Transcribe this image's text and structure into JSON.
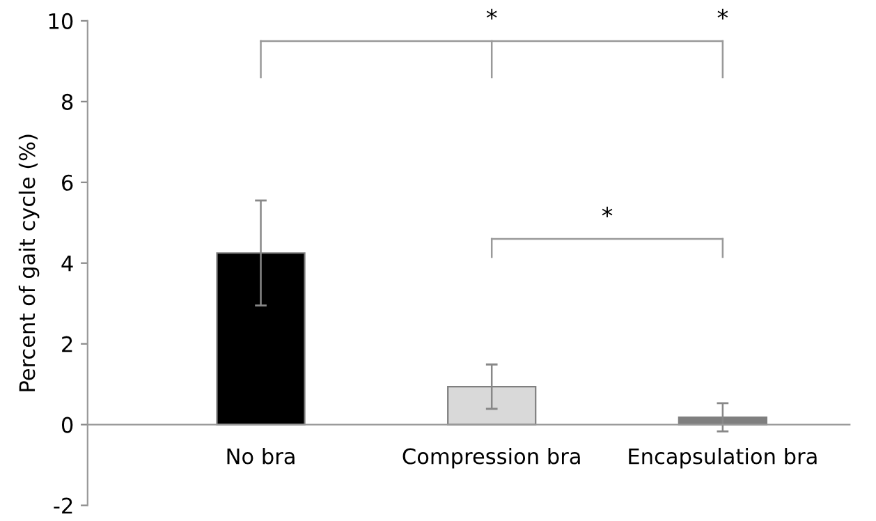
{
  "chart_data": {
    "type": "bar",
    "ylabel": "Percent of gait cycle (%)",
    "categories": [
      "No bra",
      "Compression bra",
      "Encapsulation bra"
    ],
    "values": [
      4.25,
      0.94,
      0.18
    ],
    "errors": [
      1.3,
      0.55,
      0.35
    ],
    "colors": [
      "#000000",
      "#d9d9d9",
      "#7f7f7f"
    ],
    "ylim": [
      -2,
      10
    ],
    "yticks": [
      -2,
      0,
      2,
      4,
      6,
      8,
      10
    ],
    "annotations": [
      "*",
      "*",
      "*"
    ]
  }
}
